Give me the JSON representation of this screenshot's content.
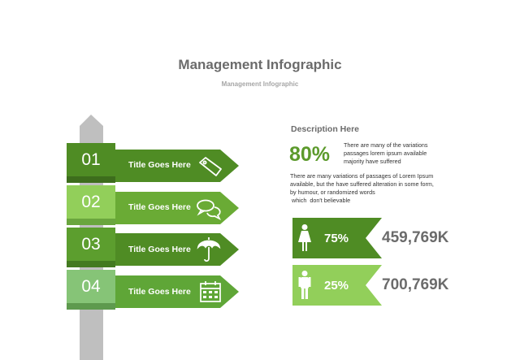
{
  "header": {
    "title": "Management Infographic",
    "subtitle": "Management Infographic"
  },
  "steps": [
    {
      "number": "01",
      "label": "Title Goes Here",
      "icon": "tag-icon"
    },
    {
      "number": "02",
      "label": "Title Goes Here",
      "icon": "chat-bubbles-icon"
    },
    {
      "number": "03",
      "label": "Title Goes Here",
      "icon": "umbrella-icon"
    },
    {
      "number": "04",
      "label": "Title Goes Here",
      "icon": "calendar-icon"
    }
  ],
  "description": {
    "heading": "Description Here",
    "percent": "80%",
    "percent_text": [
      "There are many of the variations",
      "passages lorem ipsum available",
      "majority have suffered"
    ],
    "paragraph": [
      "There are many variations of passages  of Lorem Ipsum",
      "available, but the have suffered alteration in some  form,",
      "by humour, or randomized words",
      " which  don't believable"
    ]
  },
  "stats": [
    {
      "icon": "female-person-icon",
      "percent": "75%",
      "value": "459,769K"
    },
    {
      "icon": "male-person-icon",
      "percent": "25%",
      "value": "700,769K"
    }
  ],
  "colors": {
    "dark_green": "#4f8c24",
    "mid_green": "#6aab35",
    "light_green": "#92cf5a",
    "pale_green": "#7fc070",
    "post_gray": "#bfbfbf",
    "text_gray": "#6b6b6b"
  }
}
